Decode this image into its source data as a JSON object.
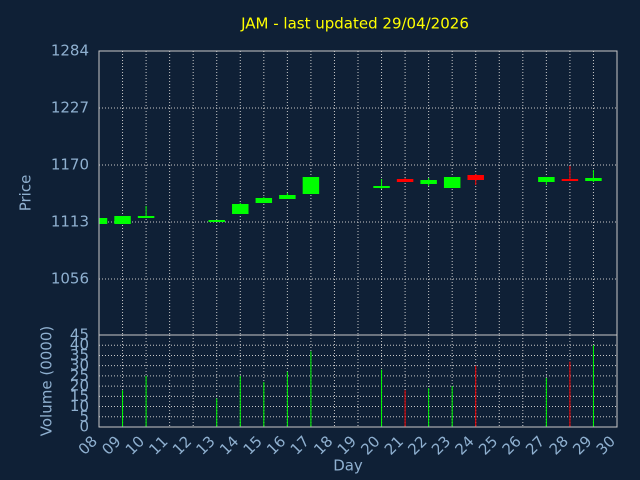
{
  "chart_data": {
    "type": "candlestick",
    "title": "JAM - last updated 29/04/2026",
    "x_label": "Day",
    "y_label": "Price",
    "y2_label": "Volume (0000)",
    "categories": [
      "08",
      "09",
      "10",
      "11",
      "12",
      "13",
      "14",
      "15",
      "16",
      "17",
      "18",
      "19",
      "20",
      "21",
      "22",
      "23",
      "24",
      "25",
      "26",
      "27",
      "28",
      "29",
      "30"
    ],
    "open": [
      1111,
      1111,
      1117,
      null,
      null,
      1113,
      1121,
      1132,
      1136,
      1141,
      null,
      null,
      1147,
      1156,
      1151,
      1147,
      1160,
      null,
      null,
      1153,
      1156,
      1154,
      null
    ],
    "high": [
      1117,
      1119,
      1129,
      null,
      null,
      1115,
      1132,
      1138,
      1142,
      1158,
      null,
      null,
      1156,
      1157,
      1157,
      1158,
      1161,
      null,
      null,
      1158,
      1169,
      1165,
      null
    ],
    "low": [
      1111,
      1111,
      1117,
      null,
      null,
      1113,
      1121,
      1132,
      1136,
      1141,
      null,
      null,
      1146,
      1153,
      1149,
      1147,
      1150,
      null,
      null,
      1150,
      1154,
      1153,
      null
    ],
    "close": [
      1117,
      1119,
      1119,
      null,
      null,
      1115,
      1131,
      1137,
      1140,
      1158,
      null,
      null,
      1149,
      1153,
      1155,
      1158,
      1155,
      null,
      null,
      1158,
      1154,
      1157,
      null
    ],
    "volume": [
      null,
      18,
      25,
      null,
      null,
      14,
      25,
      22,
      27,
      37,
      null,
      null,
      28,
      18,
      19,
      20,
      30,
      null,
      null,
      24,
      32,
      40,
      null
    ],
    "up_color": "#00ff00",
    "down_color": "#ff0000",
    "ylim": [
      1000,
      1284
    ],
    "yticks": [
      1056,
      1113,
      1170,
      1227,
      1284
    ],
    "y2lim": [
      0,
      45
    ],
    "y2ticks": [
      0,
      5,
      10,
      15,
      20,
      25,
      30,
      35,
      40,
      45
    ],
    "grid": true
  }
}
